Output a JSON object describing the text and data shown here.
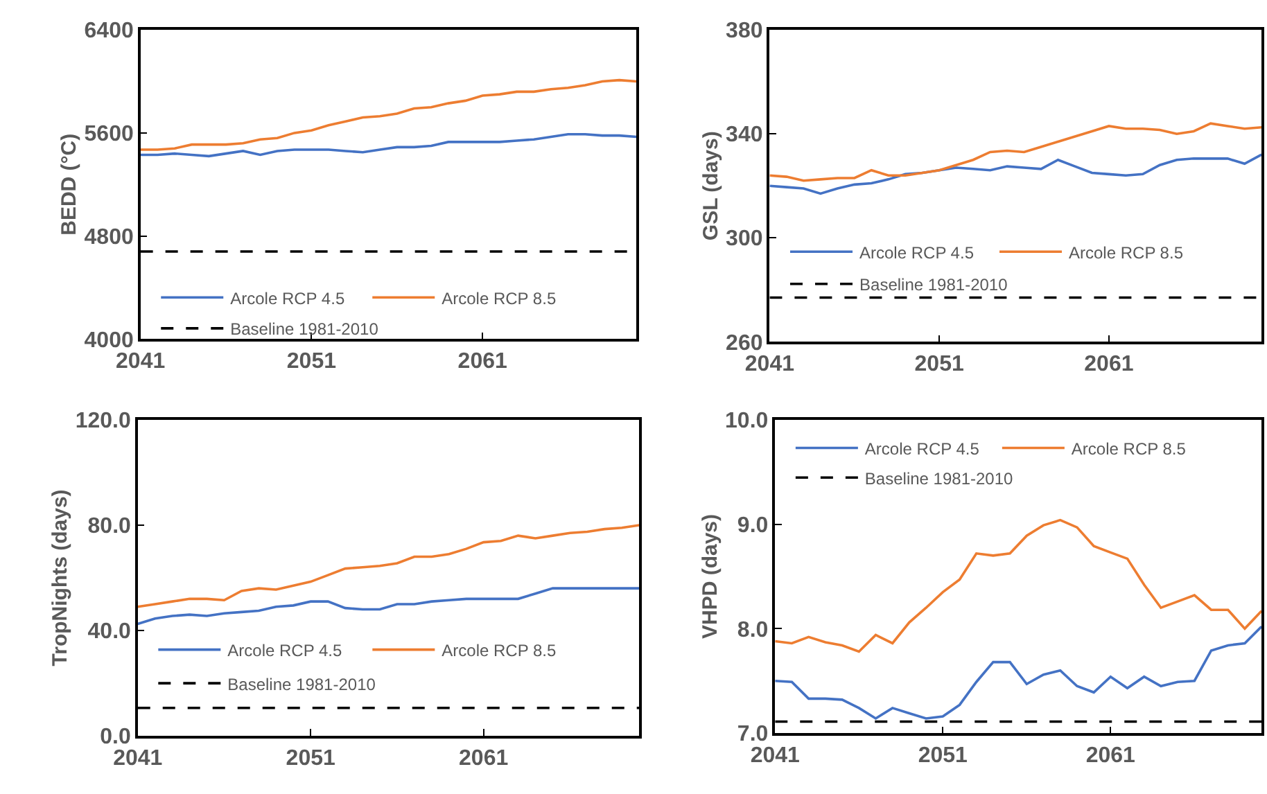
{
  "chart_data": [
    {
      "type": "line",
      "ylabel": "BEDD (°C)",
      "x": [
        2041,
        2042,
        2043,
        2044,
        2045,
        2046,
        2047,
        2048,
        2049,
        2050,
        2051,
        2052,
        2053,
        2054,
        2055,
        2056,
        2057,
        2058,
        2059,
        2060,
        2061,
        2062,
        2063,
        2064,
        2065,
        2066,
        2067,
        2068,
        2069,
        2070
      ],
      "xlim": [
        2041,
        2070
      ],
      "xticks": [
        2041,
        2051,
        2061
      ],
      "ylim": [
        4000,
        6400
      ],
      "yticks": [
        4000,
        4800,
        5600,
        6400
      ],
      "legend": "bottom",
      "series": [
        {
          "name": "Arcole RCP 4.5",
          "color": "#4472c4",
          "values": [
            5430,
            5430,
            5440,
            5430,
            5420,
            5440,
            5460,
            5430,
            5460,
            5470,
            5470,
            5470,
            5460,
            5450,
            5470,
            5490,
            5490,
            5500,
            5530,
            5530,
            5530,
            5530,
            5540,
            5550,
            5570,
            5590,
            5590,
            5580,
            5580,
            5570
          ]
        },
        {
          "name": "Arcole RCP 8.5",
          "color": "#ed7d31",
          "values": [
            5470,
            5470,
            5480,
            5510,
            5510,
            5510,
            5520,
            5550,
            5560,
            5600,
            5620,
            5660,
            5690,
            5720,
            5730,
            5750,
            5790,
            5800,
            5830,
            5850,
            5890,
            5900,
            5920,
            5920,
            5940,
            5950,
            5970,
            6000,
            6010,
            6000
          ]
        }
      ],
      "ref_lines": [
        {
          "axis": "y",
          "value": 4680,
          "label": "Baseline 1981-2010",
          "color": "#000000",
          "line_style": "dashed"
        }
      ]
    },
    {
      "type": "line",
      "ylabel": "GSL (days)",
      "x": [
        2041,
        2042,
        2043,
        2044,
        2045,
        2046,
        2047,
        2048,
        2049,
        2050,
        2051,
        2052,
        2053,
        2054,
        2055,
        2056,
        2057,
        2058,
        2059,
        2060,
        2061,
        2062,
        2063,
        2064,
        2065,
        2066,
        2067,
        2068,
        2069,
        2070
      ],
      "xlim": [
        2041,
        2070
      ],
      "xticks": [
        2041,
        2051,
        2061
      ],
      "ylim": [
        260,
        380
      ],
      "yticks": [
        260,
        300,
        340,
        380
      ],
      "legend": "bottom",
      "series": [
        {
          "name": "Arcole RCP 4.5",
          "color": "#4472c4",
          "values": [
            320,
            319.5,
            319,
            317,
            319,
            320.5,
            321,
            322.5,
            324.5,
            325,
            326,
            327,
            326.5,
            326,
            327.5,
            327,
            326.5,
            330,
            327.5,
            325,
            324.5,
            324,
            324.5,
            328,
            330,
            330.5,
            330.5,
            330.5,
            328.5,
            332
          ]
        },
        {
          "name": "Arcole RCP 8.5",
          "color": "#ed7d31",
          "values": [
            324,
            323.5,
            322,
            322.5,
            323,
            323,
            326,
            324,
            324,
            325,
            326,
            328,
            330,
            333,
            333.5,
            333,
            335,
            337,
            339,
            341,
            343,
            342,
            342,
            341.5,
            340,
            341,
            344,
            343,
            342,
            342.5
          ]
        }
      ],
      "ref_lines": [
        {
          "axis": "y",
          "value": 277,
          "label": "Baseline 1981-2010",
          "color": "#000000",
          "line_style": "dashed"
        }
      ]
    },
    {
      "type": "line",
      "ylabel": "TropNights (days)",
      "x": [
        2041,
        2042,
        2043,
        2044,
        2045,
        2046,
        2047,
        2048,
        2049,
        2050,
        2051,
        2052,
        2053,
        2054,
        2055,
        2056,
        2057,
        2058,
        2059,
        2060,
        2061,
        2062,
        2063,
        2064,
        2065,
        2066,
        2067,
        2068,
        2069,
        2070
      ],
      "xlim": [
        2041,
        2070
      ],
      "xticks": [
        2041,
        2051,
        2061
      ],
      "ylim": [
        0,
        120
      ],
      "yticks": [
        {
          "value": 0,
          "label": "0.0"
        },
        {
          "value": 40,
          "label": "40.0"
        },
        {
          "value": 80,
          "label": "80.0"
        },
        {
          "value": 120,
          "label": "120.0"
        }
      ],
      "legend": "bottom",
      "series": [
        {
          "name": "Arcole RCP 4.5",
          "color": "#4472c4",
          "values": [
            42.5,
            44.5,
            45.5,
            46,
            45.5,
            46.5,
            47,
            47.5,
            49,
            49.5,
            51,
            51,
            48.5,
            48,
            48,
            50,
            50,
            51,
            51.5,
            52,
            52,
            52,
            52,
            54,
            56,
            56,
            56,
            56,
            56,
            56
          ]
        },
        {
          "name": "Arcole RCP 8.5",
          "color": "#ed7d31",
          "values": [
            49,
            50,
            51,
            52,
            52,
            51.5,
            55,
            56,
            55.5,
            57,
            58.5,
            61,
            63.5,
            64,
            64.5,
            65.5,
            68,
            68,
            69,
            71,
            73.5,
            74,
            76,
            75,
            76,
            77,
            77.5,
            78.5,
            79,
            80
          ]
        }
      ],
      "ref_lines": [
        {
          "axis": "y",
          "value": 10.6,
          "label": "Baseline 1981-2010",
          "color": "#000000",
          "line_style": "dashed"
        }
      ]
    },
    {
      "type": "line",
      "ylabel": "VHPD (days)",
      "x": [
        2041,
        2042,
        2043,
        2044,
        2045,
        2046,
        2047,
        2048,
        2049,
        2050,
        2051,
        2052,
        2053,
        2054,
        2055,
        2056,
        2057,
        2058,
        2059,
        2060,
        2061,
        2062,
        2063,
        2064,
        2065,
        2066,
        2067,
        2068,
        2069,
        2070
      ],
      "xlim": [
        2041,
        2070
      ],
      "xticks": [
        2041,
        2051,
        2061
      ],
      "ylim": [
        7,
        10
      ],
      "yticks": [
        {
          "value": 7,
          "label": "7.0"
        },
        {
          "value": 8,
          "label": "8.0"
        },
        {
          "value": 9,
          "label": "9.0"
        },
        {
          "value": 10,
          "label": "10.0"
        }
      ],
      "legend": "top",
      "series": [
        {
          "name": "Arcole RCP 4.5",
          "color": "#4472c4",
          "values": [
            7.5,
            7.49,
            7.33,
            7.33,
            7.32,
            7.24,
            7.14,
            7.24,
            7.19,
            7.14,
            7.16,
            7.27,
            7.49,
            7.68,
            7.68,
            7.47,
            7.56,
            7.6,
            7.45,
            7.39,
            7.54,
            7.43,
            7.54,
            7.45,
            7.49,
            7.5,
            7.79,
            7.84,
            7.86,
            8.02
          ]
        },
        {
          "name": "Arcole RCP 8.5",
          "color": "#ed7d31",
          "values": [
            7.88,
            7.86,
            7.92,
            7.87,
            7.84,
            7.78,
            7.94,
            7.86,
            8.06,
            8.2,
            8.35,
            8.47,
            8.72,
            8.7,
            8.72,
            8.89,
            8.99,
            9.04,
            8.97,
            8.79,
            8.73,
            8.67,
            8.42,
            8.2,
            8.26,
            8.32,
            8.18,
            8.18,
            8.0,
            8.17
          ]
        }
      ],
      "ref_lines": [
        {
          "axis": "y",
          "value": 7.11,
          "label": "Baseline 1981-2010",
          "color": "#000000",
          "line_style": "dashed"
        }
      ]
    }
  ]
}
